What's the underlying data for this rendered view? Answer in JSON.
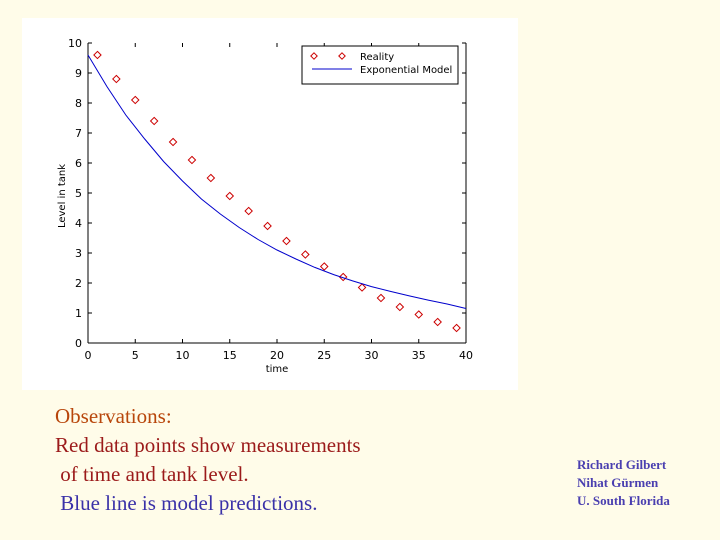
{
  "chart_data": {
    "type": "scatter",
    "xlabel": "time",
    "ylabel": "Level in tank",
    "xlim": [
      0,
      40
    ],
    "ylim": [
      0,
      10
    ],
    "xticks": [
      0,
      5,
      10,
      15,
      20,
      25,
      30,
      35,
      40
    ],
    "yticks": [
      0,
      1,
      2,
      3,
      4,
      5,
      6,
      7,
      8,
      9,
      10
    ],
    "legend_position": "top-right",
    "series": [
      {
        "name": "Reality",
        "kind": "points",
        "color": "#cc0000",
        "marker": "diamond",
        "x": [
          1,
          3,
          5,
          7,
          9,
          11,
          13,
          15,
          17,
          19,
          21,
          23,
          25,
          27,
          29,
          31,
          33,
          35,
          37,
          39
        ],
        "y": [
          9.6,
          8.8,
          8.1,
          7.4,
          6.7,
          6.1,
          5.5,
          4.9,
          4.4,
          3.9,
          3.4,
          2.95,
          2.55,
          2.2,
          1.85,
          1.5,
          1.2,
          0.95,
          0.7,
          0.5
        ]
      },
      {
        "name": "Exponential Model",
        "kind": "line",
        "color": "#0000cc",
        "x": [
          0,
          2,
          4,
          6,
          8,
          10,
          12,
          14,
          16,
          18,
          20,
          22,
          24,
          26,
          28,
          30,
          32,
          34,
          36,
          38,
          40
        ],
        "y": [
          9.6,
          8.55,
          7.6,
          6.8,
          6.05,
          5.4,
          4.8,
          4.3,
          3.85,
          3.45,
          3.1,
          2.8,
          2.52,
          2.28,
          2.07,
          1.88,
          1.72,
          1.57,
          1.43,
          1.3,
          1.15
        ]
      }
    ]
  },
  "notes": {
    "lines": [
      {
        "text": "Observations:",
        "color": "#b8460b"
      },
      {
        "text": "Red data points show measurements",
        "color": "#9b1a1a"
      },
      {
        "text": " of time and tank level.",
        "color": "#9b1a1a"
      },
      {
        "text": " Blue line is model predictions.",
        "color": "#3a31a8"
      }
    ]
  },
  "credits": {
    "lines": [
      "Richard Gilbert",
      "Nihat Gürmen",
      "U. South Florida"
    ]
  }
}
